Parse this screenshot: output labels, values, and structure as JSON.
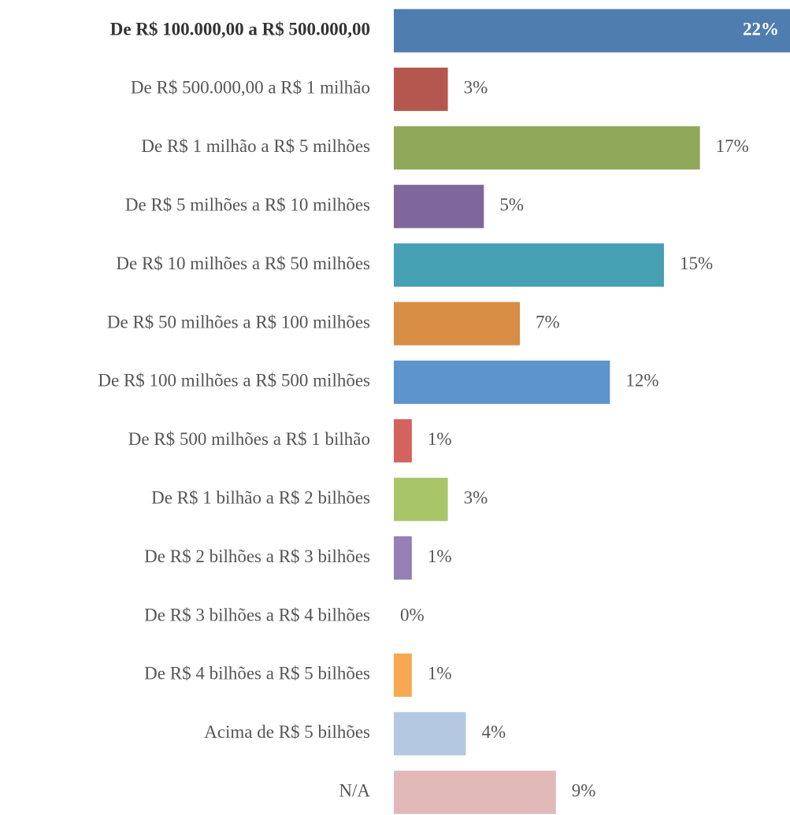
{
  "chart_data": {
    "type": "bar",
    "orientation": "horizontal",
    "categories": [
      "De R$ 100.000,00 a R$ 500.000,00",
      "De R$ 500.000,00 a R$ 1 milhão",
      "De R$ 1 milhão a R$ 5 milhões",
      "De R$ 5 milhões a R$ 10 milhões",
      "De R$ 10 milhões a R$ 50 milhões",
      "De R$ 50 milhões a R$ 100 milhões",
      "De R$ 100 milhões a R$ 500 milhões",
      "De R$ 500 milhões a R$ 1 bilhão",
      "De R$ 1 bilhão a R$ 2 bilhões",
      "De R$  2 bilhões a R$ 3 bilhões",
      "De R$  3 bilhões a R$ 4 bilhões",
      "De R$ 4 bilhões a R$ 5 bilhões",
      "Acima de R$  5 bilhões",
      "N/A"
    ],
    "values": [
      22,
      3,
      17,
      5,
      15,
      7,
      12,
      1,
      3,
      1,
      0,
      1,
      4,
      9
    ],
    "value_labels": [
      "22%",
      "3%",
      "17%",
      "5%",
      "15%",
      "7%",
      "12%",
      "1%",
      "3%",
      "1%",
      "0%",
      "1%",
      "4%",
      "9%"
    ],
    "colors": [
      "#4f7daf",
      "#b5574e",
      "#8fa85a",
      "#7e679a",
      "#46a0b3",
      "#d88d44",
      "#5d94cb",
      "#d4625f",
      "#a9c56a",
      "#9480b5",
      "#9c9c9c",
      "#f6a853",
      "#b4c8e1",
      "#e2b9b9"
    ]
  }
}
